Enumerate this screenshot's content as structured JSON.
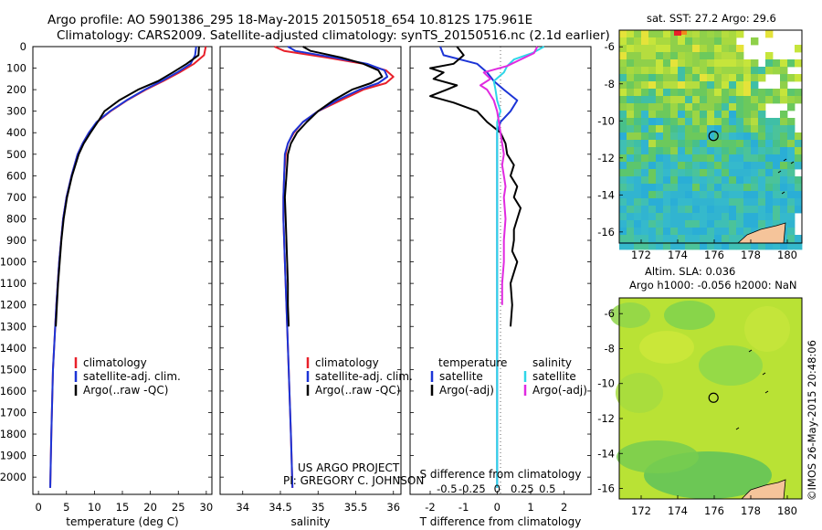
{
  "title": {
    "line1": "Argo profile: AO 5901386_295 18-May-2015 20150518_654 10.812S 175.961E",
    "line2": "Climatology: CARS2009. Satellite-adjusted climatology: synTS_20150516.nc (2.1d earlier)"
  },
  "depth_axis": {
    "range": [
      0,
      2080
    ],
    "ticks": [
      0,
      100,
      200,
      300,
      400,
      500,
      600,
      700,
      800,
      900,
      1000,
      1100,
      1200,
      1300,
      1400,
      1500,
      1600,
      1700,
      1800,
      1900,
      2000
    ]
  },
  "colors": {
    "climatology": "#e8202a",
    "satellite": "#1c34d6",
    "argo": "#000000",
    "sal_satellite": "#2fd6e8",
    "sal_argo": "#e02ae0",
    "land": "#f5c49a"
  },
  "chart_data": [
    {
      "type": "line",
      "id": "temperature",
      "xlabel": "temperature (deg C)",
      "xlim": [
        -1,
        31
      ],
      "xticks": [
        0,
        5,
        10,
        15,
        20,
        25,
        30
      ],
      "legend": {
        "placement": "bottom-right",
        "entries": [
          {
            "label": "climatology",
            "color_key": "climatology"
          },
          {
            "label": "satellite-adj. clim.",
            "color_key": "satellite"
          },
          {
            "label": "Argo(..raw -QC)",
            "color_key": "argo"
          }
        ]
      },
      "series": [
        {
          "name": "climatology",
          "color_key": "climatology",
          "depth": [
            0,
            40,
            80,
            120,
            160,
            200,
            250,
            300,
            350,
            400,
            450,
            500,
            600,
            700,
            800,
            1000,
            1200,
            1500,
            1800,
            2050
          ],
          "values": [
            29.9,
            29.6,
            27.8,
            25.2,
            22.3,
            19.2,
            15.8,
            12.9,
            10.5,
            9.0,
            7.9,
            7.0,
            5.9,
            5.0,
            4.4,
            3.7,
            3.2,
            2.6,
            2.3,
            2.1
          ]
        },
        {
          "name": "satellite-adj. clim.",
          "color_key": "satellite",
          "depth": [
            0,
            40,
            80,
            120,
            160,
            200,
            250,
            300,
            350,
            400,
            450,
            500,
            600,
            700,
            800,
            1000,
            1200,
            1500,
            1800,
            2050
          ],
          "values": [
            28.2,
            28.0,
            27.2,
            24.8,
            22.0,
            19.0,
            15.7,
            12.8,
            10.4,
            9.0,
            7.9,
            7.0,
            5.9,
            5.0,
            4.4,
            3.7,
            3.2,
            2.6,
            2.3,
            2.1
          ]
        },
        {
          "name": "Argo(..raw -QC)",
          "color_key": "argo",
          "depth": [
            0,
            40,
            80,
            120,
            160,
            200,
            250,
            300,
            350,
            400,
            450,
            500,
            600,
            700,
            800,
            900,
            1000,
            1100,
            1200,
            1300
          ],
          "values": [
            28.7,
            28.6,
            26.5,
            24.0,
            21.4,
            17.8,
            14.4,
            11.8,
            10.6,
            9.3,
            8.1,
            7.2,
            6.0,
            5.1,
            4.5,
            4.1,
            3.8,
            3.5,
            3.3,
            3.1
          ]
        }
      ]
    },
    {
      "type": "line",
      "id": "salinity",
      "xlabel": "salinity",
      "xlim": [
        33.7,
        36.1
      ],
      "xticks": [
        34,
        34.5,
        35,
        35.5,
        36
      ],
      "legend": {
        "placement": "bottom-right",
        "entries": [
          {
            "label": "climatology",
            "color_key": "climatology"
          },
          {
            "label": "satellite-adj. clim.",
            "color_key": "satellite"
          },
          {
            "label": "Argo(..raw -QC)",
            "color_key": "argo"
          }
        ]
      },
      "annotation": [
        "US ARGO PROJECT",
        "PI: GREGORY C. JOHNSON"
      ],
      "series": [
        {
          "name": "climatology",
          "color_key": "climatology",
          "depth": [
            0,
            20,
            50,
            80,
            110,
            140,
            170,
            200,
            250,
            300,
            350,
            400,
            450,
            500,
            600,
            700,
            800,
            1000,
            1200,
            1500,
            1800,
            2050
          ],
          "values": [
            34.42,
            34.55,
            35.1,
            35.6,
            35.9,
            36.0,
            35.9,
            35.6,
            35.3,
            35.0,
            34.8,
            34.68,
            34.6,
            34.57,
            34.55,
            34.54,
            34.54,
            34.56,
            34.58,
            34.61,
            34.64,
            34.66
          ]
        },
        {
          "name": "satellite-adj. clim.",
          "color_key": "satellite",
          "depth": [
            0,
            20,
            50,
            80,
            110,
            140,
            170,
            200,
            250,
            300,
            350,
            400,
            450,
            500,
            600,
            700,
            800,
            1000,
            1200,
            1500,
            1800,
            2050
          ],
          "values": [
            34.6,
            34.7,
            35.2,
            35.65,
            35.88,
            35.92,
            35.8,
            35.55,
            35.25,
            35.0,
            34.8,
            34.67,
            34.6,
            34.56,
            34.55,
            34.54,
            34.54,
            34.56,
            34.58,
            34.61,
            34.64,
            34.66
          ]
        },
        {
          "name": "Argo(..raw -QC)",
          "color_key": "argo",
          "depth": [
            0,
            20,
            50,
            80,
            110,
            140,
            170,
            200,
            250,
            300,
            350,
            400,
            450,
            500,
            600,
            700,
            800,
            900,
            1000,
            1100,
            1200,
            1300
          ],
          "values": [
            34.8,
            34.9,
            35.3,
            35.6,
            35.8,
            35.85,
            35.7,
            35.45,
            35.2,
            35.0,
            34.85,
            34.72,
            34.64,
            34.6,
            34.58,
            34.56,
            34.57,
            34.58,
            34.59,
            34.6,
            34.6,
            34.61
          ]
        }
      ]
    },
    {
      "type": "line",
      "id": "difference",
      "xlabel": "T difference from climatology",
      "xlabel2": "S difference from climatology",
      "xlim": [
        -2.6,
        2.8
      ],
      "xticks": [
        -2,
        -1,
        0,
        1,
        2
      ],
      "xticks2": [
        {
          "pos": -1.5,
          "label": "-0.5"
        },
        {
          "pos": -0.75,
          "label": "-0.25"
        },
        {
          "pos": 0,
          "label": "0"
        },
        {
          "pos": 0.75,
          "label": "0.25"
        },
        {
          "pos": 1.5,
          "label": "0.5"
        }
      ],
      "legend": {
        "placement": "bottom",
        "temperature_header": "temperature",
        "salinity_header": "salinity",
        "entries": [
          {
            "label": "satellite",
            "color_key": "satellite",
            "group": "temperature"
          },
          {
            "label": "Argo(-adj)",
            "color_key": "argo",
            "group": "temperature"
          },
          {
            "label": "satellite",
            "color_key": "sal_satellite",
            "group": "salinity"
          },
          {
            "label": "Argo(-adj)",
            "color_key": "sal_argo",
            "group": "salinity"
          }
        ]
      },
      "series": [
        {
          "name": "T satellite",
          "color_key": "satellite",
          "depth": [
            0,
            40,
            80,
            120,
            160,
            200,
            250,
            300,
            350,
            400,
            500,
            600,
            800,
            1000,
            1500,
            2050
          ],
          "values": [
            -1.7,
            -1.6,
            -0.6,
            -0.3,
            -0.1,
            0.2,
            0.6,
            0.4,
            0.1,
            0.0,
            0.0,
            0.0,
            0.0,
            0.0,
            0.0,
            0.0
          ]
        },
        {
          "name": "T Argo(-adj)",
          "color_key": "argo",
          "depth": [
            0,
            40,
            80,
            100,
            120,
            150,
            180,
            200,
            230,
            260,
            300,
            350,
            400,
            450,
            500,
            550,
            600,
            650,
            700,
            750,
            800,
            850,
            900,
            950,
            1000,
            1100,
            1200,
            1300
          ],
          "values": [
            -1.2,
            -1.0,
            -1.3,
            -2.0,
            -1.6,
            -1.9,
            -1.2,
            -1.5,
            -2.0,
            -1.3,
            -0.6,
            -0.3,
            0.1,
            0.25,
            0.3,
            0.5,
            0.4,
            0.6,
            0.5,
            0.7,
            0.6,
            0.5,
            0.5,
            0.45,
            0.6,
            0.4,
            0.45,
            0.4
          ]
        },
        {
          "name": "S satellite",
          "color_key": "sal_satellite",
          "depth": [
            0,
            30,
            60,
            90,
            120,
            160,
            200,
            250,
            300,
            350,
            400,
            500,
            600,
            800,
            1000,
            1300,
            1600,
            2050
          ],
          "values": [
            1.4,
            1.05,
            0.5,
            0.3,
            0.2,
            -0.1,
            -0.05,
            0.0,
            0.1,
            0.0,
            0.0,
            0.0,
            0.0,
            0.0,
            0.0,
            0.0,
            0.0,
            0.0
          ]
        },
        {
          "name": "S Argo(-adj)",
          "color_key": "sal_argo",
          "depth": [
            0,
            30,
            60,
            90,
            120,
            150,
            180,
            200,
            250,
            300,
            350,
            400,
            450,
            500,
            550,
            600,
            650,
            700,
            800,
            900,
            1000,
            1100,
            1200
          ],
          "values": [
            1.2,
            1.1,
            0.7,
            0.3,
            -0.4,
            -0.2,
            -0.5,
            -0.3,
            -0.1,
            0.0,
            0.05,
            0.1,
            0.15,
            0.2,
            0.15,
            0.2,
            0.25,
            0.2,
            0.25,
            0.2,
            0.2,
            0.15,
            0.15
          ]
        }
      ]
    },
    {
      "type": "heatmap",
      "id": "sst_map",
      "title": "sat. SST: 27.2  Argo: 29.6",
      "xlim": [
        170.8,
        180.8
      ],
      "ylim": [
        -16.6,
        -5.1
      ],
      "xticks": [
        172,
        174,
        176,
        178,
        180
      ],
      "yticks": [
        -6,
        -8,
        -10,
        -12,
        -14,
        -16
      ],
      "marker": {
        "lon": 175.961,
        "lat": -10.812
      }
    },
    {
      "type": "heatmap",
      "id": "sla_map",
      "title": "Altim. SLA: 0.036",
      "subtitle": "Argo h1000: -0.056 h2000: NaN",
      "xlim": [
        170.8,
        180.8
      ],
      "ylim": [
        -16.6,
        -5.1
      ],
      "xticks": [
        172,
        174,
        176,
        178,
        180
      ],
      "yticks": [
        -6,
        -8,
        -10,
        -12,
        -14,
        -16
      ],
      "marker": {
        "lon": 175.961,
        "lat": -10.812
      }
    }
  ],
  "credit": "©IMOS 26-May-2015 20:48:06"
}
